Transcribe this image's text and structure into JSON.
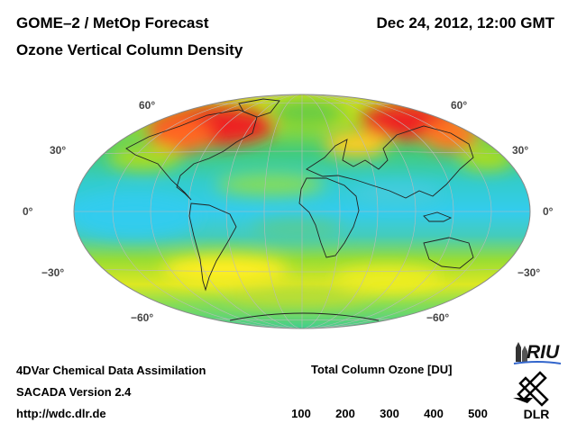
{
  "header": {
    "title": "GOME–2 / MetOp Forecast",
    "subtitle": "Ozone Vertical Column Density",
    "datetime": "Dec 24, 2012, 12:00 GMT"
  },
  "map": {
    "projection": "Hammer-Aitoff",
    "lat_labels": {
      "n60": "60°",
      "n30": "30°",
      "eq": "0°",
      "s30": "−30°",
      "s60": "−60°"
    }
  },
  "colorbar": {
    "title": "Total Column Ozone [DU]",
    "ticks": [
      "100",
      "200",
      "300",
      "400",
      "500"
    ],
    "range": [
      100,
      500
    ],
    "colors": [
      "#000066",
      "#2020ff",
      "#33ddee",
      "#22cc44",
      "#ffff22",
      "#ff9922",
      "#ee1111",
      "#880000"
    ]
  },
  "footer": {
    "line1": "4DVar Chemical Data Assimilation",
    "line2": "SACADA Version 2.4",
    "line3": "http://wdc.dlr.de"
  },
  "logos": {
    "riu": "RIU",
    "dlr": "DLR"
  }
}
